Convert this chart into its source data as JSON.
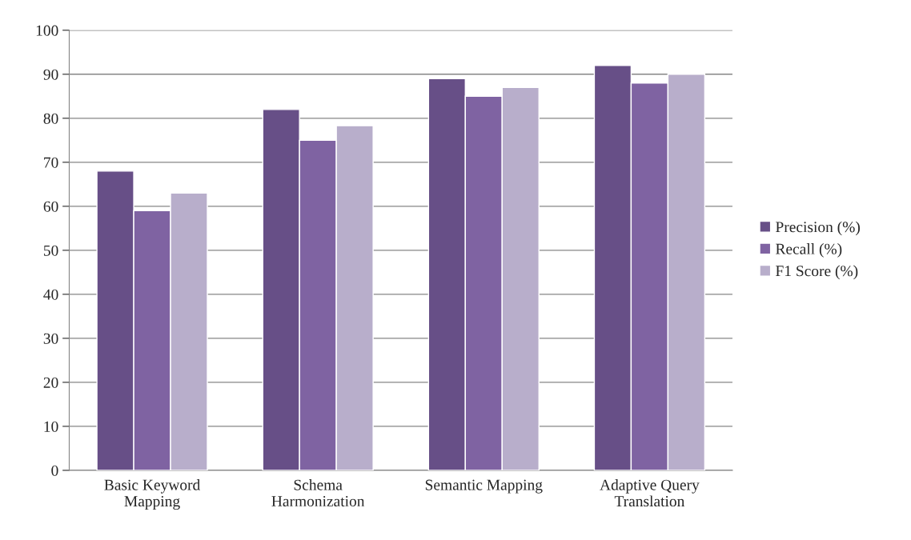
{
  "chart_data": {
    "type": "bar",
    "categories": [
      "Basic Keyword\nMapping",
      "Schema\nHarmonization",
      "Semantic Mapping",
      "Adaptive Query\nTranslation"
    ],
    "series": [
      {
        "name": "Precision (%)",
        "color": "#674f87",
        "values": [
          68,
          82,
          89,
          92
        ]
      },
      {
        "name": "Recall (%)",
        "color": "#7f63a2",
        "values": [
          59,
          75,
          85,
          88
        ]
      },
      {
        "name": "F1 Score (%)",
        "color": "#b8aecb",
        "values": [
          63,
          78.3,
          87,
          90
        ]
      }
    ],
    "ylim": [
      0,
      100
    ],
    "yticks": [
      0,
      10,
      20,
      30,
      40,
      50,
      60,
      70,
      80,
      90,
      100
    ],
    "grid": "y",
    "legend": "right"
  }
}
